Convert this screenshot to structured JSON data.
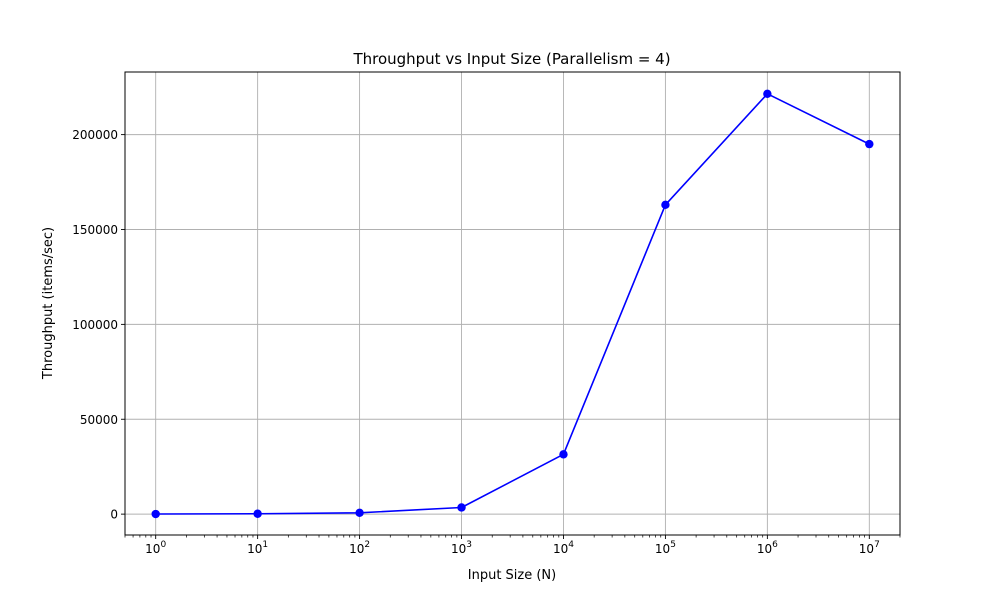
{
  "chart_data": {
    "type": "line",
    "title": "Throughput vs Input Size (Parallelism = 4)",
    "xlabel": "Input Size (N)",
    "ylabel": "Throughput (items/sec)",
    "x_scale": "log",
    "x": [
      1,
      10,
      100,
      1000,
      10000,
      100000,
      1000000,
      10000000
    ],
    "x_tick_labels": [
      {
        "base": "10",
        "exp": "0"
      },
      {
        "base": "10",
        "exp": "1"
      },
      {
        "base": "10",
        "exp": "2"
      },
      {
        "base": "10",
        "exp": "3"
      },
      {
        "base": "10",
        "exp": "4"
      },
      {
        "base": "10",
        "exp": "5"
      },
      {
        "base": "10",
        "exp": "6"
      },
      {
        "base": "10",
        "exp": "7"
      }
    ],
    "y_ticks": [
      0,
      50000,
      100000,
      150000,
      200000
    ],
    "y_tick_labels": [
      "0",
      "50000",
      "100000",
      "150000",
      "200000"
    ],
    "xlim": [
      0.5,
      20000000
    ],
    "ylim": [
      -11000,
      233000
    ],
    "grid": true,
    "series": [
      {
        "color": "#0000ff",
        "marker": "circle",
        "values": [
          60,
          200,
          700,
          3500,
          31500,
          163000,
          221500,
          195000
        ]
      }
    ]
  }
}
